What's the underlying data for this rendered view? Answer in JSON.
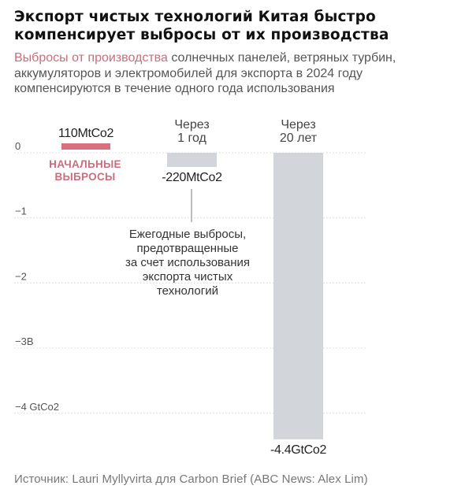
{
  "title": "Экспорт чистых технологий Китая быстро компенсирует выбросы от их производства",
  "subtitle": {
    "highlight": "Выбросы от производства",
    "rest": " солнечных панелей, ветряных турбин, аккумуляторов и электромобилей для экспорта в 2024 году компенсируются в течение одного года использования"
  },
  "source": "Источник: Lauri Myllyvirta для Carbon Brief (ABC News: Alex Lim)",
  "colors": {
    "accent": "#d8707f",
    "bar_gray": "#d2d5d9",
    "grid": "#d4d4d4",
    "axis_text": "#555555",
    "annotation_text": "#333333",
    "accent_text": "#c96e7c"
  },
  "chart_data": {
    "type": "bar",
    "unit": "GtCo2",
    "ylim": [
      -4.4,
      0
    ],
    "grid": true,
    "yticks": [
      {
        "value": 0,
        "label": "0"
      },
      {
        "value": -1,
        "label": "−1"
      },
      {
        "value": -2,
        "label": "−2"
      },
      {
        "value": -3,
        "label": "−3B"
      },
      {
        "value": -4,
        "label": "−4 GtCo2"
      }
    ],
    "bars": [
      {
        "header": [],
        "value": 0.11,
        "value_label": "110MtCo2",
        "note": [
          "НАЧАЛЬНЫЕ",
          "ВЫБРОСЫ"
        ],
        "color": "#d8707f"
      },
      {
        "header": [
          "Через",
          "1 год"
        ],
        "value": -0.22,
        "value_label": "-220MtCo2",
        "note": [],
        "color": "#d2d5d9"
      },
      {
        "header": [
          "Через",
          "20 лет"
        ],
        "value": -4.4,
        "value_label": "-4.4GtCo2",
        "note": [],
        "color": "#d2d5d9"
      }
    ],
    "annotation": [
      "Ежегодные выбросы,",
      "предотвращенные",
      "за счет использования",
      "экспорта чистых",
      "технологий"
    ]
  }
}
